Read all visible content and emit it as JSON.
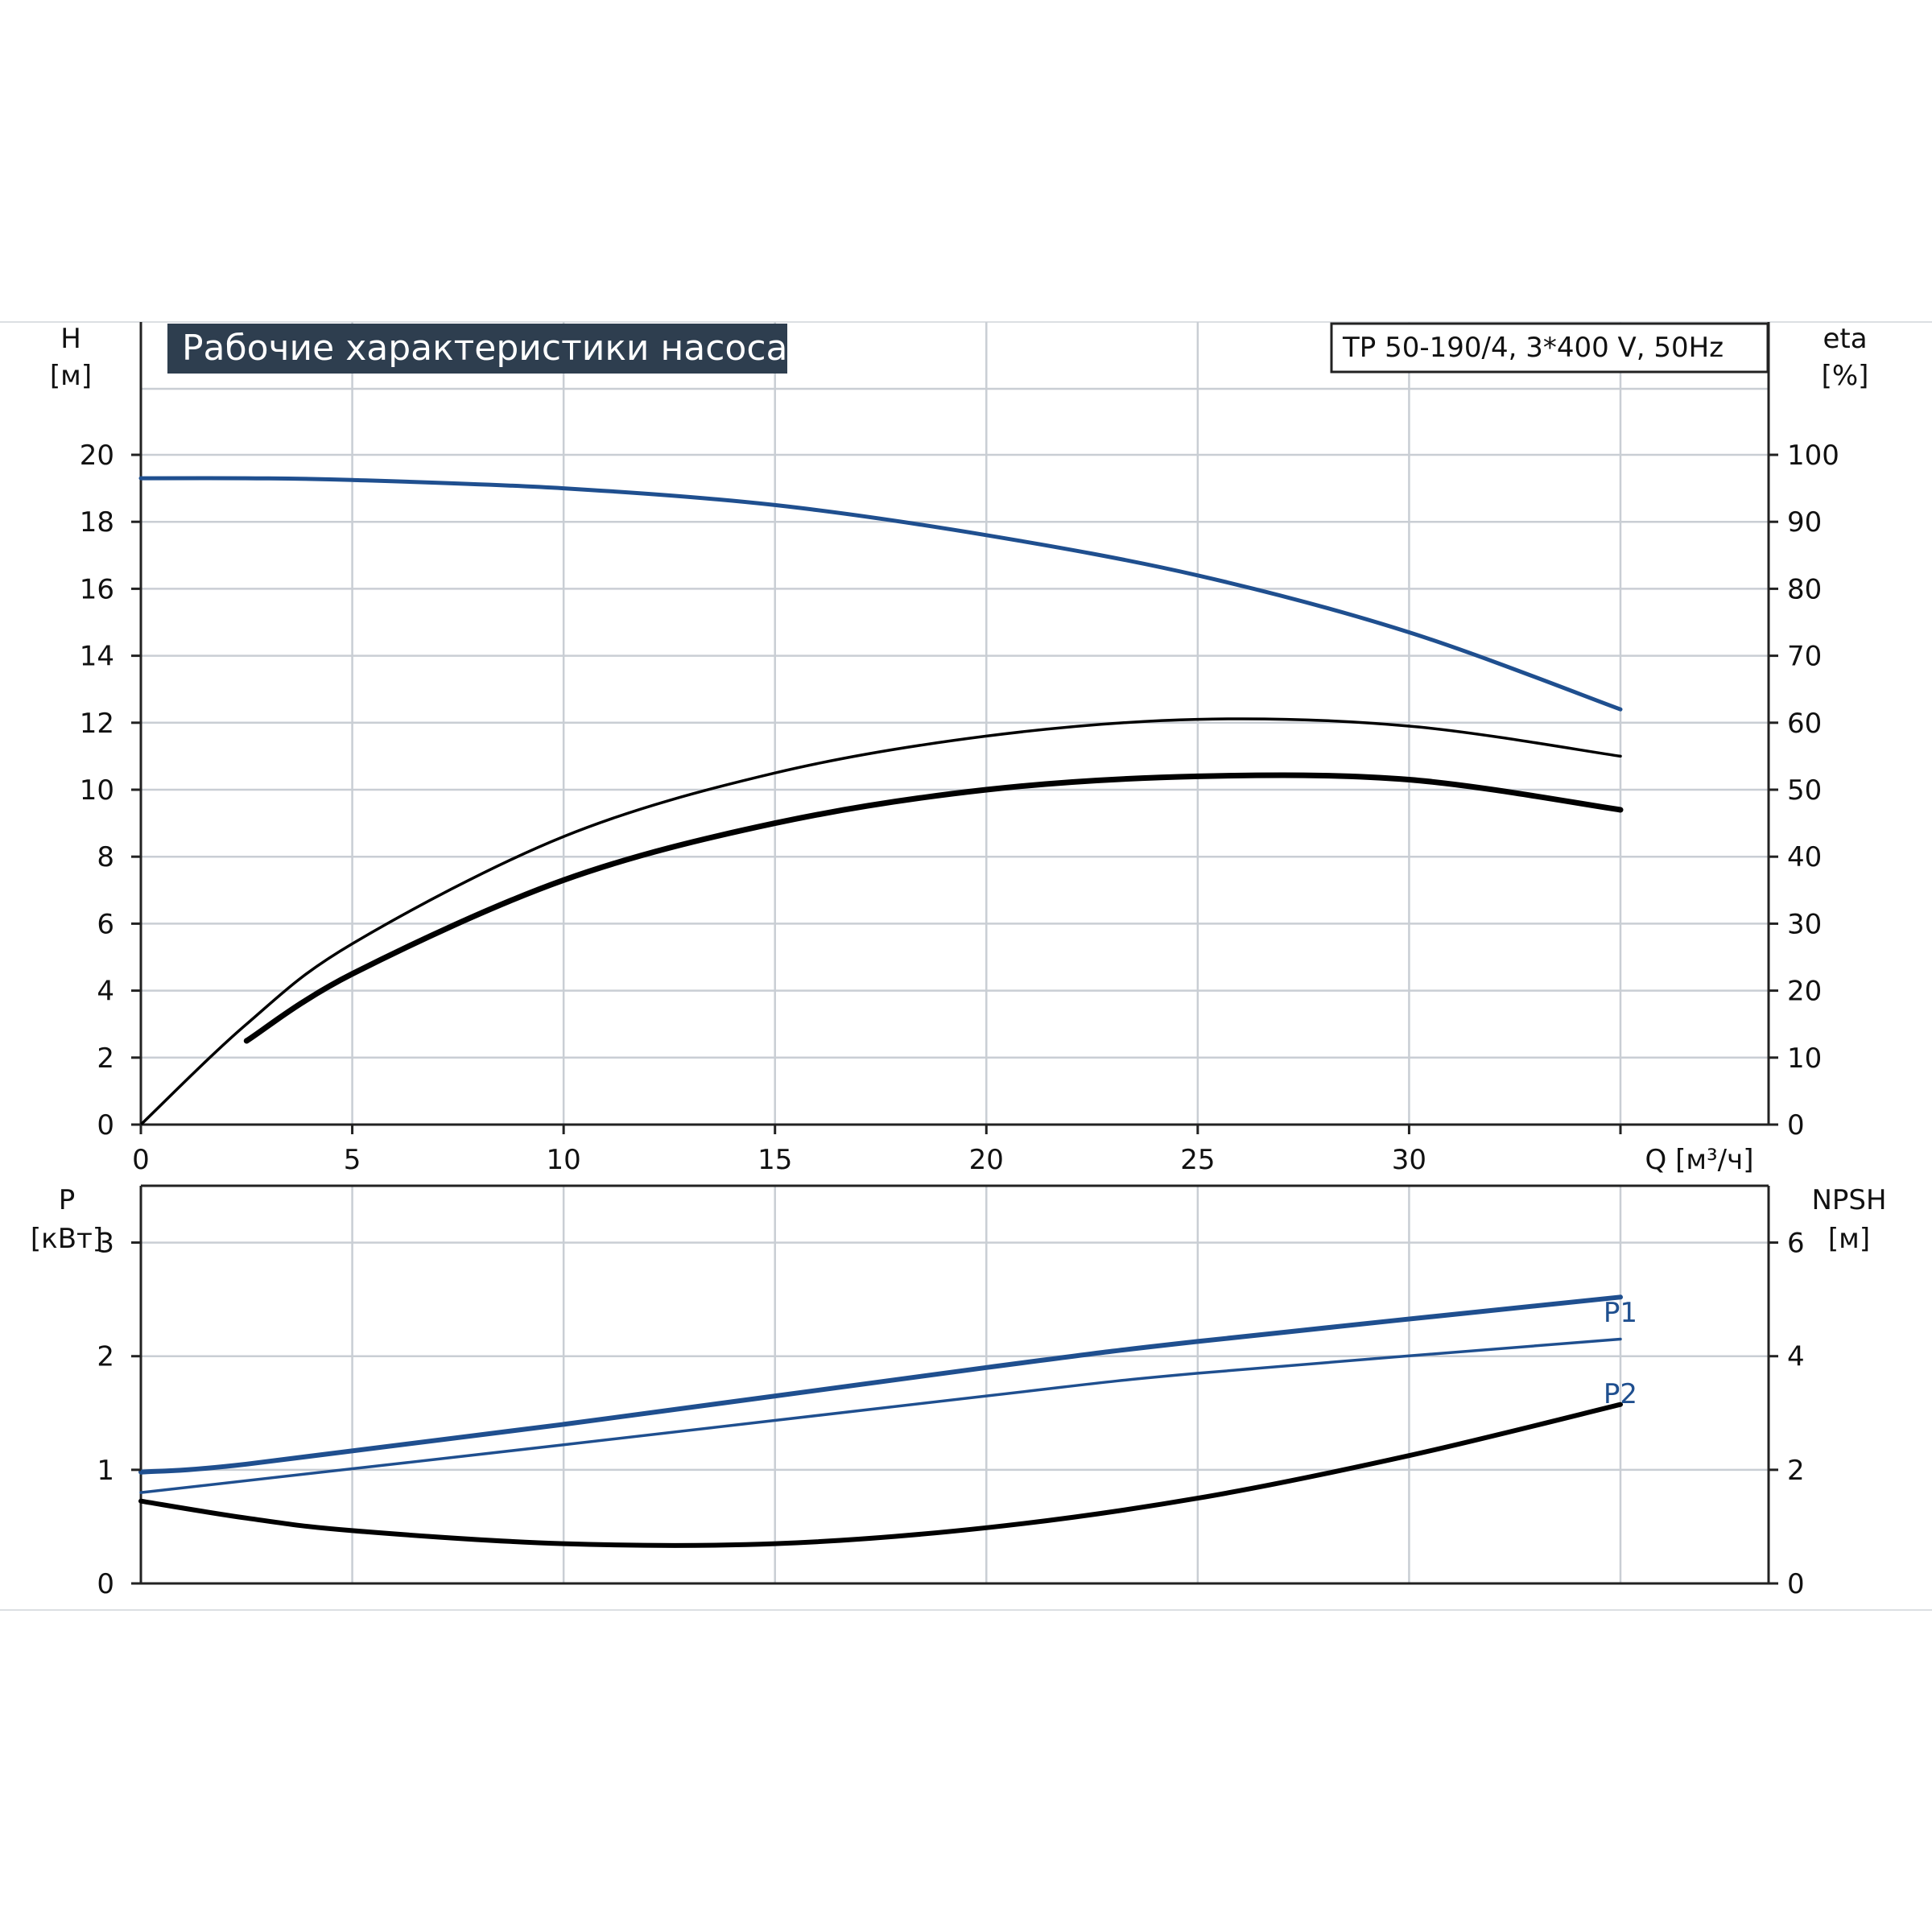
{
  "charts": {
    "title": "Рабочие характеристики насоса",
    "model": "TP 50-190/4, 3*400 V, 50Hz",
    "x_axis_label": "Q [м³/ч]",
    "head_axis": {
      "name": "H",
      "unit": "[м]"
    },
    "eta_axis": {
      "name": "eta",
      "unit": "[%]"
    },
    "power_axis": {
      "name": "P",
      "unit": "[кВт]"
    },
    "npsh_axis": {
      "name": "NPSH",
      "unit": "[м]"
    },
    "labels": {
      "p1": "P1",
      "p2": "P2"
    }
  },
  "colors": {
    "blue": "#1f4f8f",
    "black": "#000000",
    "grid": "#c9ced4"
  },
  "chart_data": [
    {
      "type": "line",
      "title": "Рабочие характеристики насоса",
      "subtitle": "TP 50-190/4, 3*400 V, 50Hz",
      "xlabel": "Q [м³/ч]",
      "ylabel": "H [м]",
      "y2label": "eta [%]",
      "xlim": [
        0,
        35
      ],
      "ylim": [
        0,
        20
      ],
      "y2lim": [
        0,
        100
      ],
      "x_ticks": [
        0,
        5,
        10,
        15,
        20,
        25,
        30
      ],
      "y_ticks": [
        0,
        2,
        4,
        6,
        8,
        10,
        12,
        14,
        16,
        18,
        20
      ],
      "y2_ticks": [
        0,
        10,
        20,
        30,
        40,
        50,
        60,
        70,
        80,
        90,
        100
      ],
      "grid": true,
      "series": [
        {
          "name": "H",
          "axis": "left",
          "color": "#1f4f8f",
          "x": [
            0,
            2.5,
            5,
            10,
            15,
            20,
            25,
            30,
            35
          ],
          "y": [
            19.3,
            19.3,
            19.25,
            19.0,
            18.5,
            17.6,
            16.4,
            14.7,
            12.4
          ]
        },
        {
          "name": "eta",
          "axis": "right",
          "color": "#000000",
          "x": [
            0,
            2.5,
            5,
            10,
            15,
            20,
            25,
            30,
            35
          ],
          "y": [
            0,
            15,
            27,
            43,
            52.5,
            58,
            60.5,
            59.5,
            55
          ]
        },
        {
          "name": "eta",
          "axis": "right",
          "color": "#000000",
          "x": [
            2.5,
            5,
            10,
            15,
            20,
            25,
            30,
            35
          ],
          "y": [
            12.5,
            22.5,
            36.5,
            45,
            50,
            52,
            51.5,
            47
          ]
        }
      ]
    },
    {
      "type": "line",
      "xlabel": "Q [м³/ч]",
      "ylabel": "P [кВт]",
      "y2label": "NPSH [м]",
      "xlim": [
        0,
        35
      ],
      "ylim": [
        0,
        3.5
      ],
      "y2lim": [
        0,
        7
      ],
      "x_ticks": [
        0,
        5,
        10,
        15,
        20,
        25,
        30
      ],
      "y_ticks": [
        0,
        1,
        2,
        3
      ],
      "y2_ticks": [
        0,
        2,
        4,
        6
      ],
      "grid": true,
      "series": [
        {
          "name": "P1",
          "axis": "left",
          "color": "#1f4f8f",
          "x": [
            0,
            2.5,
            10,
            20,
            25,
            35
          ],
          "y": [
            0.98,
            1.05,
            1.4,
            1.9,
            2.13,
            2.52
          ]
        },
        {
          "name": "P2",
          "axis": "left",
          "color": "#1f4f8f",
          "x": [
            0,
            10,
            20,
            25,
            35
          ],
          "y": [
            0.8,
            1.22,
            1.65,
            1.85,
            2.15
          ]
        },
        {
          "name": "NPSH",
          "axis": "right",
          "color": "#000000",
          "x": [
            0,
            2.5,
            5,
            10,
            15,
            20,
            25,
            30,
            35
          ],
          "y": [
            1.45,
            1.15,
            0.93,
            0.7,
            0.7,
            0.98,
            1.5,
            2.25,
            3.15
          ]
        }
      ]
    }
  ]
}
